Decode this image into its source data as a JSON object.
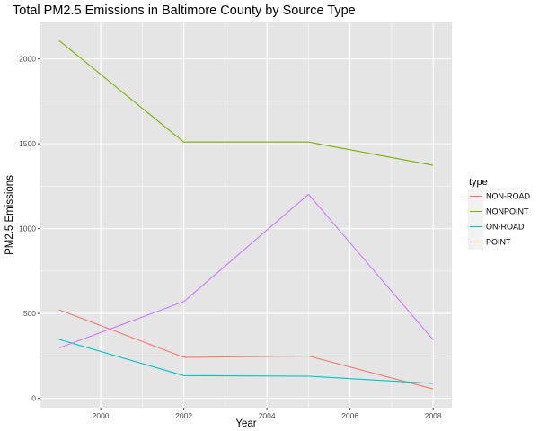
{
  "chart_data": {
    "type": "line",
    "title": "Total PM2.5 Emissions in Baltimore County by Source Type",
    "xlabel": "Year",
    "ylabel": "PM2.5 Emissions",
    "x": [
      1999,
      2002,
      2005,
      2008
    ],
    "x_ticks": [
      2000,
      2002,
      2004,
      2006,
      2008
    ],
    "x_tick_labels": [
      "2000",
      "2002",
      "2004",
      "2006",
      "2008"
    ],
    "y_ticks": [
      0,
      500,
      1000,
      1500,
      2000
    ],
    "y_tick_labels": [
      "0",
      "500",
      "1000",
      "1500",
      "2000"
    ],
    "xlim": [
      1998.55,
      2008.45
    ],
    "ylim": [
      -55,
      2215
    ],
    "grid": true,
    "legend_position": "right",
    "legend_title": "type",
    "series": [
      {
        "name": "NON-ROAD",
        "color": "#f8766d",
        "values": [
          522,
          242,
          249,
          55
        ]
      },
      {
        "name": "NONPOINT",
        "color": "#7cae00",
        "values": [
          2108,
          1510,
          1510,
          1373
        ]
      },
      {
        "name": "ON-ROAD",
        "color": "#00bfc4",
        "values": [
          347,
          134,
          130,
          88
        ]
      },
      {
        "name": "POINT",
        "color": "#c77cff",
        "values": [
          297,
          570,
          1202,
          345
        ]
      }
    ],
    "panel_background": "#e5e5e5",
    "grid_color": "#ffffff"
  }
}
